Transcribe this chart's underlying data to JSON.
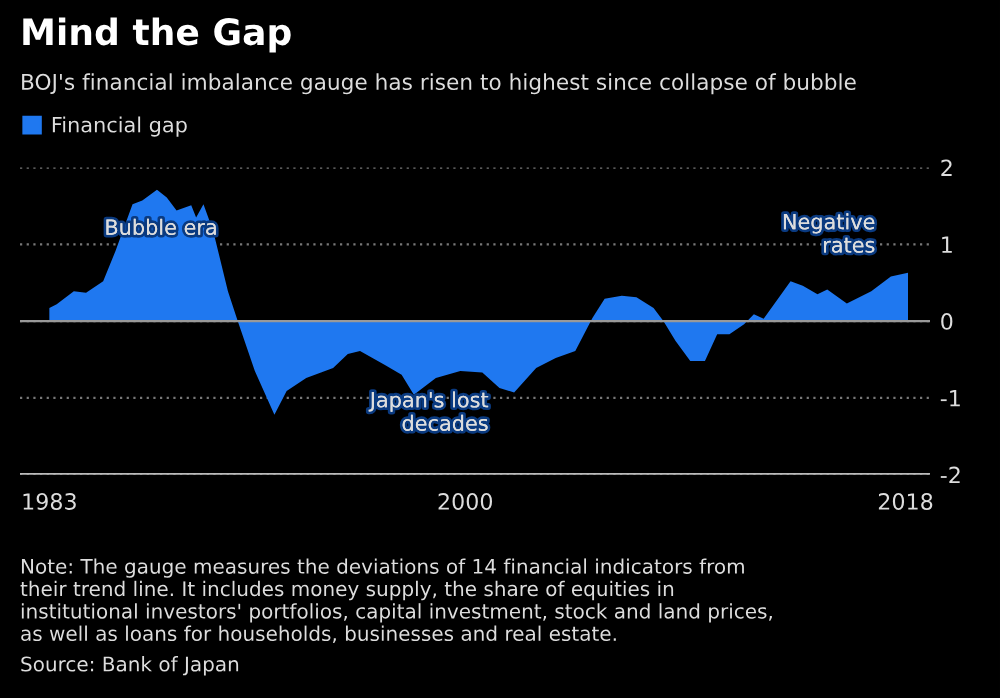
{
  "chart_data": {
    "type": "area",
    "title": "Mind the Gap",
    "subtitle": "BOJ's financial imbalance gauge has risen to highest since collapse of bubble",
    "x": [
      1983.0,
      1983.3,
      1984.0,
      1984.5,
      1985.2,
      1985.7,
      1986.4,
      1986.8,
      1987.4,
      1987.8,
      1988.2,
      1988.8,
      1989.0,
      1989.3,
      1989.7,
      1990.3,
      1990.7,
      1991.4,
      1992.2,
      1992.7,
      1993.5,
      1994.6,
      1995.2,
      1995.7,
      1996.7,
      1997.4,
      1997.9,
      1998.8,
      1999.8,
      2000.7,
      2001.4,
      2002.0,
      2002.9,
      2003.7,
      2004.5,
      2005.2,
      2005.7,
      2006.4,
      2007.0,
      2007.7,
      2008.1,
      2008.6,
      2009.2,
      2009.8,
      2010.3,
      2010.8,
      2011.4,
      2011.8,
      2012.2,
      2013.3,
      2013.8,
      2014.4,
      2014.8,
      2015.6,
      2016.6,
      2017.4,
      2018.1
    ],
    "series": [
      {
        "name": "Financial gap",
        "color": "#1f78f0",
        "values": [
          0.17,
          0.22,
          0.39,
          0.37,
          0.52,
          0.91,
          1.52,
          1.57,
          1.71,
          1.61,
          1.44,
          1.51,
          1.35,
          1.52,
          1.17,
          0.39,
          0.0,
          -0.65,
          -1.22,
          -0.91,
          -0.74,
          -0.61,
          -0.43,
          -0.39,
          -0.57,
          -0.7,
          -0.96,
          -0.74,
          -0.65,
          -0.67,
          -0.87,
          -0.93,
          -0.61,
          -0.48,
          -0.39,
          0.04,
          0.29,
          0.33,
          0.31,
          0.17,
          0.0,
          -0.26,
          -0.52,
          -0.52,
          -0.17,
          -0.17,
          -0.04,
          0.09,
          0.03,
          0.52,
          0.46,
          0.35,
          0.41,
          0.23,
          0.39,
          0.58,
          0.63
        ]
      }
    ],
    "xlim": [
      1981.8,
      2019.0
    ],
    "xticks": [
      1983,
      2000,
      2018
    ],
    "ylim": [
      -2,
      2
    ],
    "yticks": [
      -2,
      -1,
      0,
      1,
      2
    ],
    "grid": "y",
    "legend": "top left",
    "annotations": [
      "Bubble era",
      "Japan's lost\ndecades",
      "Negative\nrates",
      "Note: The gauge measures the deviations of 14 financial indicators from their trend line. It includes money supply, the share of equities in institutional investors' portfolios, capital investment, stock and land prices, as well as loans for households, businesses and real estate.",
      "Source: Bank of Japan"
    ]
  }
}
